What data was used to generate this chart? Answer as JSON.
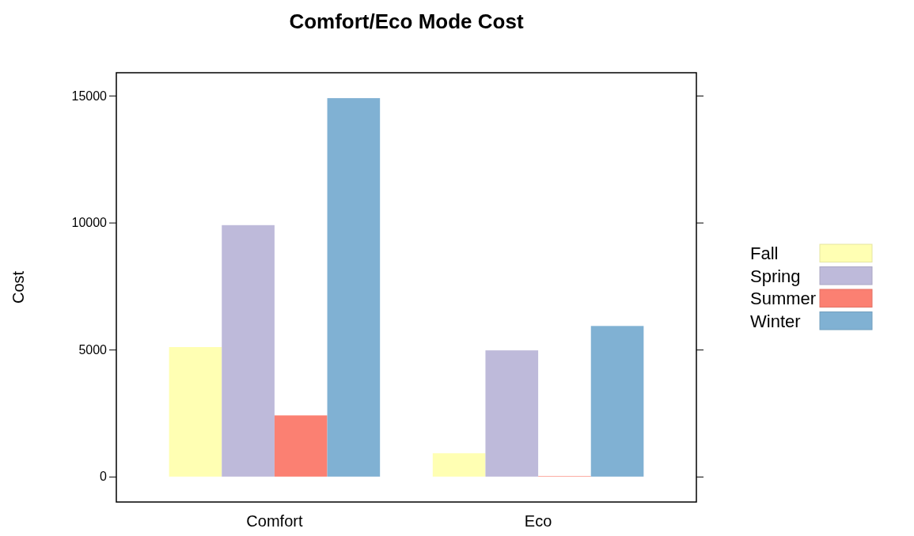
{
  "chart_data": {
    "type": "bar",
    "title": "Comfort/Eco Mode Cost",
    "ylabel": "Cost",
    "categories": [
      "Comfort",
      "Eco"
    ],
    "series": [
      {
        "name": "Fall",
        "color": "#ffffb3",
        "values": [
          5100,
          920
        ]
      },
      {
        "name": "Spring",
        "color": "#bebada",
        "values": [
          9900,
          4970
        ]
      },
      {
        "name": "Summer",
        "color": "#fb8072",
        "values": [
          2410,
          20
        ]
      },
      {
        "name": "Winter",
        "color": "#80b1d3",
        "values": [
          14900,
          5930
        ]
      }
    ],
    "ylim": [
      -1000,
      15900
    ],
    "yticks": [
      0,
      5000,
      10000,
      15000
    ],
    "grid": false,
    "legend": "right"
  }
}
